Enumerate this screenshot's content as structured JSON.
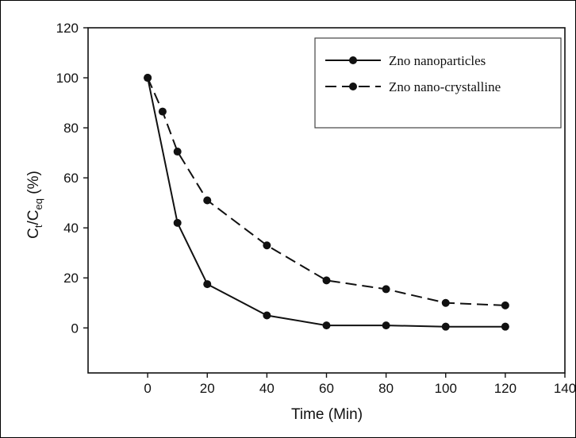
{
  "chart_data": {
    "type": "line",
    "xlabel": "Time (Min)",
    "ylabel_main": "C",
    "ylabel_sub1": "t",
    "ylabel_mid": "/C",
    "ylabel_sub2": "eq",
    "ylabel_tail": " (%)",
    "xlim": [
      -20,
      140
    ],
    "ylim": [
      -18,
      120
    ],
    "xticks": [
      0,
      20,
      40,
      60,
      80,
      100,
      120,
      140
    ],
    "yticks": [
      0,
      20,
      40,
      60,
      80,
      100,
      120
    ],
    "legend_position": "top-right",
    "series": [
      {
        "name": "Zno nanoparticles",
        "style": "solid",
        "x": [
          0,
          10,
          20,
          40,
          60,
          80,
          100,
          120
        ],
        "y": [
          100,
          42,
          17.5,
          5,
          1,
          1,
          0.5,
          0.5
        ]
      },
      {
        "name": "Zno nano-crystalline",
        "style": "dashed",
        "x": [
          0,
          5,
          10,
          20,
          40,
          60,
          80,
          100,
          120
        ],
        "y": [
          100,
          86.5,
          70.5,
          51,
          33,
          19,
          15.5,
          10,
          9
        ]
      }
    ]
  }
}
